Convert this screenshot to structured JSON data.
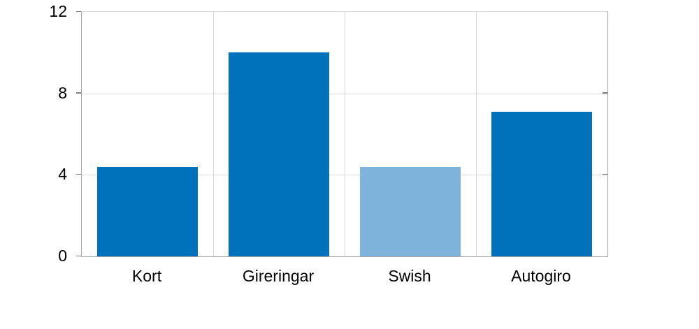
{
  "chart_data": {
    "type": "bar",
    "categories": [
      "Kort",
      "Gireringar",
      "Swish",
      "Autogiro"
    ],
    "values": [
      4.4,
      10,
      4.4,
      7.1
    ],
    "bar_colors": [
      "#0071BB",
      "#0071BB",
      "#7EB4DB",
      "#0071BB"
    ],
    "ylim": [
      0,
      12
    ],
    "yticks": [
      0,
      4,
      8,
      12
    ],
    "xlabel": "",
    "ylabel": "",
    "grid": {
      "horizontal": true,
      "vertical_category_separators": true
    },
    "legend_position": "none"
  },
  "colors": {
    "bar_primary": "#0071BB",
    "bar_highlight": "#7EB4DB",
    "gridline": "#D9D9D9",
    "axis_frame": "#A6A6A6",
    "tick": "#7F7F7F",
    "text": "#000000",
    "background": "#FFFFFF"
  }
}
